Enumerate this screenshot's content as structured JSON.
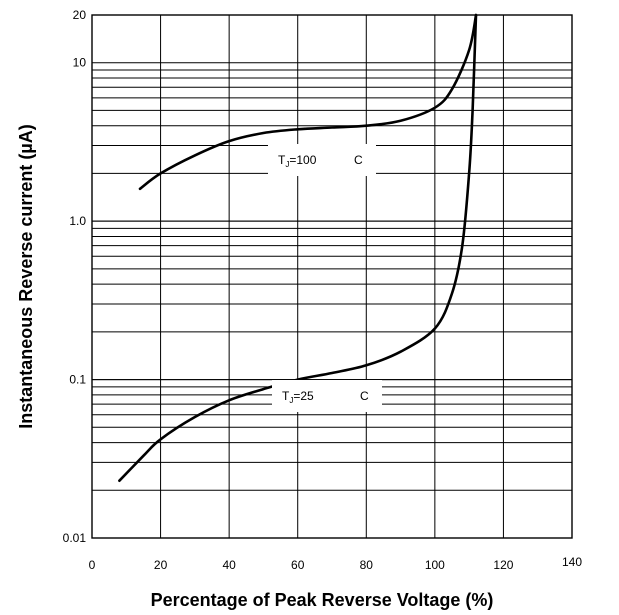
{
  "chart_data": {
    "type": "line",
    "xlabel": "Percentage of Peak Reverse Voltage (%)",
    "ylabel": "Instantaneous Reverse current (µA)",
    "xlim": [
      0,
      140
    ],
    "ylim": [
      0.01,
      20
    ],
    "y_scale": "log",
    "grid": true,
    "x_ticks": [
      "0",
      "20",
      "40",
      "60",
      "80",
      "100",
      "120",
      "140"
    ],
    "y_ticks": [
      {
        "value": 0.01,
        "label": "0.01"
      },
      {
        "value": 0.1,
        "label": "0.1"
      },
      {
        "value": 1.0,
        "label": "1.0"
      },
      {
        "value": 10,
        "label": "10"
      },
      {
        "value": 20,
        "label": "20"
      }
    ],
    "series": [
      {
        "label_prefix": "T",
        "label_subscript": "J",
        "label_value": "=100",
        "label_unit": "C",
        "x": [
          14,
          20,
          30,
          40,
          50,
          60,
          70,
          80,
          90,
          100,
          105,
          110,
          112
        ],
        "y": [
          1.6,
          2.0,
          2.6,
          3.2,
          3.6,
          3.8,
          3.9,
          4.0,
          4.3,
          5.2,
          6.8,
          12,
          20
        ]
      },
      {
        "label_prefix": "T",
        "label_subscript": "J",
        "label_value": "=25",
        "label_unit": "C",
        "x": [
          8,
          15,
          20,
          30,
          40,
          50,
          60,
          70,
          80,
          90,
          100,
          105,
          108,
          110,
          111,
          112
        ],
        "y": [
          0.023,
          0.033,
          0.042,
          0.058,
          0.074,
          0.087,
          0.1,
          0.11,
          0.123,
          0.15,
          0.21,
          0.35,
          0.7,
          2.0,
          5.0,
          20
        ]
      }
    ]
  }
}
